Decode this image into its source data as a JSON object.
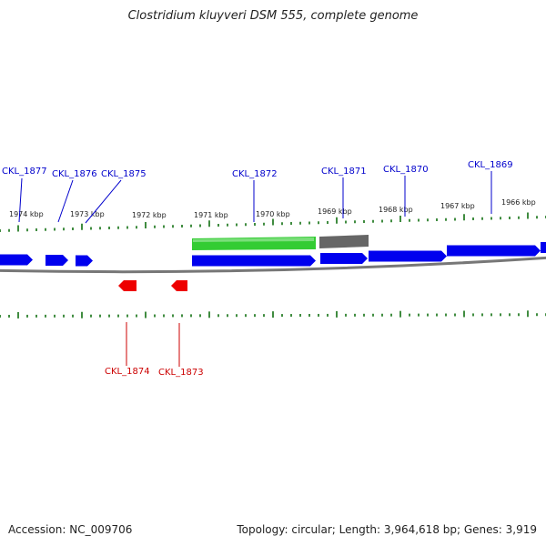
{
  "title": "Clostridium kluyveri DSM 555, complete genome",
  "footer": {
    "accession": "Accession: NC_009706",
    "summary": "Topology: circular; Length: 3,964,618 bp; Genes: 3,919"
  },
  "colors": {
    "forward_gene": "#0000ee",
    "reverse_gene": "#ee0000",
    "rna_feature": "#33cc33",
    "other_feature": "#666666",
    "backbone": "#777777",
    "ticks": "#006600",
    "forward_label": "#0000cc",
    "reverse_label": "#cc0000"
  },
  "kbp_labels": [
    "1974 kbp",
    "1973 kbp",
    "1972 kbp",
    "1971 kbp",
    "1970 kbp",
    "1969 kbp",
    "1968 kbp",
    "1967 kbp",
    "1966 kbp"
  ],
  "forward_genes": [
    {
      "label": "CKL_1877"
    },
    {
      "label": "CKL_1876"
    },
    {
      "label": "CKL_1875"
    },
    {
      "label": "CKL_1872"
    },
    {
      "label": "CKL_1871"
    },
    {
      "label": "CKL_1870"
    },
    {
      "label": "CKL_1869"
    }
  ],
  "reverse_genes": [
    {
      "label": "CKL_1874"
    },
    {
      "label": "CKL_1873"
    }
  ]
}
